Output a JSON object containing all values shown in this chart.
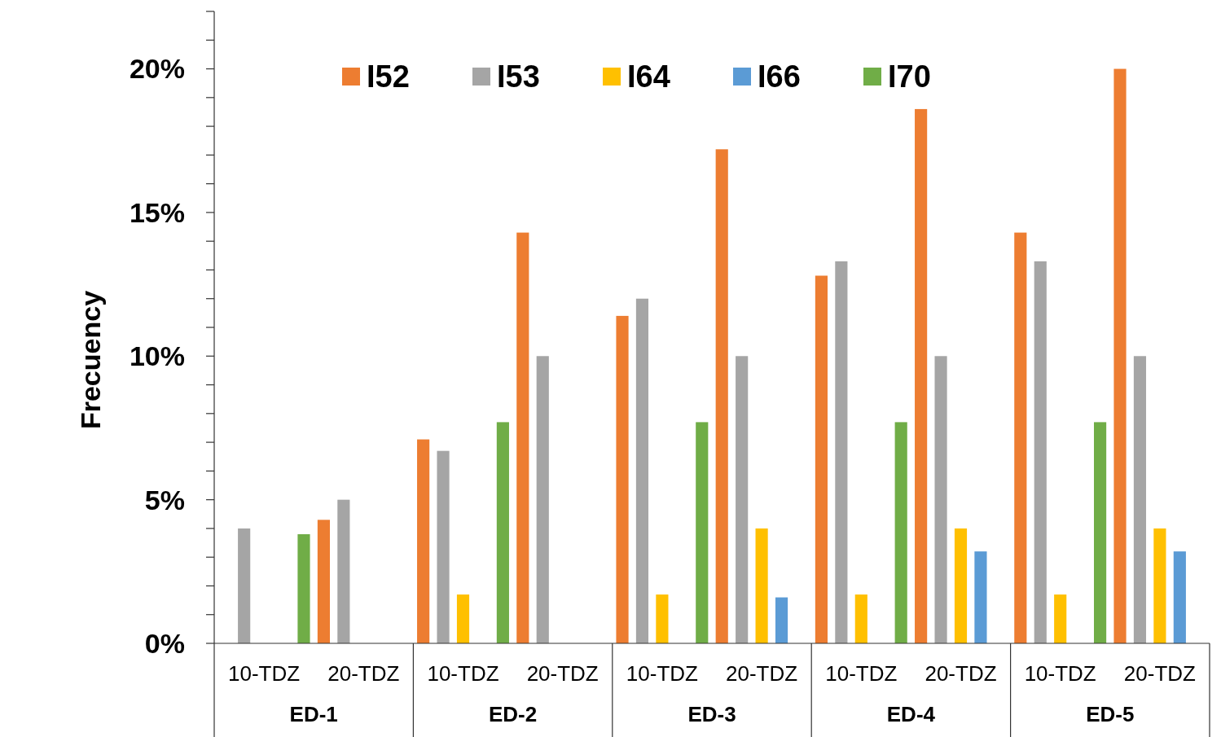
{
  "chart_data": {
    "type": "bar",
    "ylabel": "Frecuency",
    "categories": [
      "10-TDZ",
      "20-TDZ",
      "10-TDZ",
      "20-TDZ",
      "10-TDZ",
      "20-TDZ",
      "10-TDZ",
      "20-TDZ",
      "10-TDZ",
      "20-TDZ"
    ],
    "annotations": [
      "ED-1",
      "ED-2",
      "ED-3",
      "ED-4",
      "ED-5"
    ],
    "series": [
      {
        "name": "I52",
        "color": "#ed7d31",
        "values": [
          0,
          4.3,
          7.1,
          14.3,
          11.4,
          17.2,
          12.8,
          18.6,
          14.3,
          20.0
        ]
      },
      {
        "name": "I53",
        "color": "#a5a5a5",
        "values": [
          4.0,
          5.0,
          6.7,
          10.0,
          12.0,
          10.0,
          13.3,
          10.0,
          13.3,
          10.0
        ]
      },
      {
        "name": "I64",
        "color": "#ffc000",
        "values": [
          0,
          0,
          1.7,
          0,
          1.7,
          4.0,
          1.7,
          4.0,
          1.7,
          4.0
        ]
      },
      {
        "name": "I66",
        "color": "#5b9bd5",
        "values": [
          0,
          0,
          0,
          0,
          0,
          1.6,
          0,
          3.2,
          0,
          3.2
        ]
      },
      {
        "name": "I70",
        "color": "#70ad47",
        "values": [
          3.8,
          0,
          7.7,
          0,
          7.7,
          0,
          7.7,
          0,
          7.7,
          0
        ]
      }
    ],
    "ylim": [
      0,
      22
    ],
    "yticks": [
      {
        "value": 0,
        "label": "0%"
      },
      {
        "value": 1,
        "label": null
      },
      {
        "value": 2,
        "label": null
      },
      {
        "value": 3,
        "label": null
      },
      {
        "value": 4,
        "label": null
      },
      {
        "value": 5,
        "label": "5%"
      },
      {
        "value": 6,
        "label": null
      },
      {
        "value": 7,
        "label": null
      },
      {
        "value": 8,
        "label": null
      },
      {
        "value": 9,
        "label": null
      },
      {
        "value": 10,
        "label": "10%"
      },
      {
        "value": 11,
        "label": null
      },
      {
        "value": 12,
        "label": null
      },
      {
        "value": 13,
        "label": null
      },
      {
        "value": 14,
        "label": null
      },
      {
        "value": 15,
        "label": "15%"
      },
      {
        "value": 16,
        "label": null
      },
      {
        "value": 17,
        "label": null
      },
      {
        "value": 18,
        "label": null
      },
      {
        "value": 19,
        "label": null
      },
      {
        "value": 20,
        "label": "20%"
      },
      {
        "value": 21,
        "label": null
      },
      {
        "value": 22,
        "label": null
      }
    ],
    "grid": false,
    "legend": "top"
  }
}
